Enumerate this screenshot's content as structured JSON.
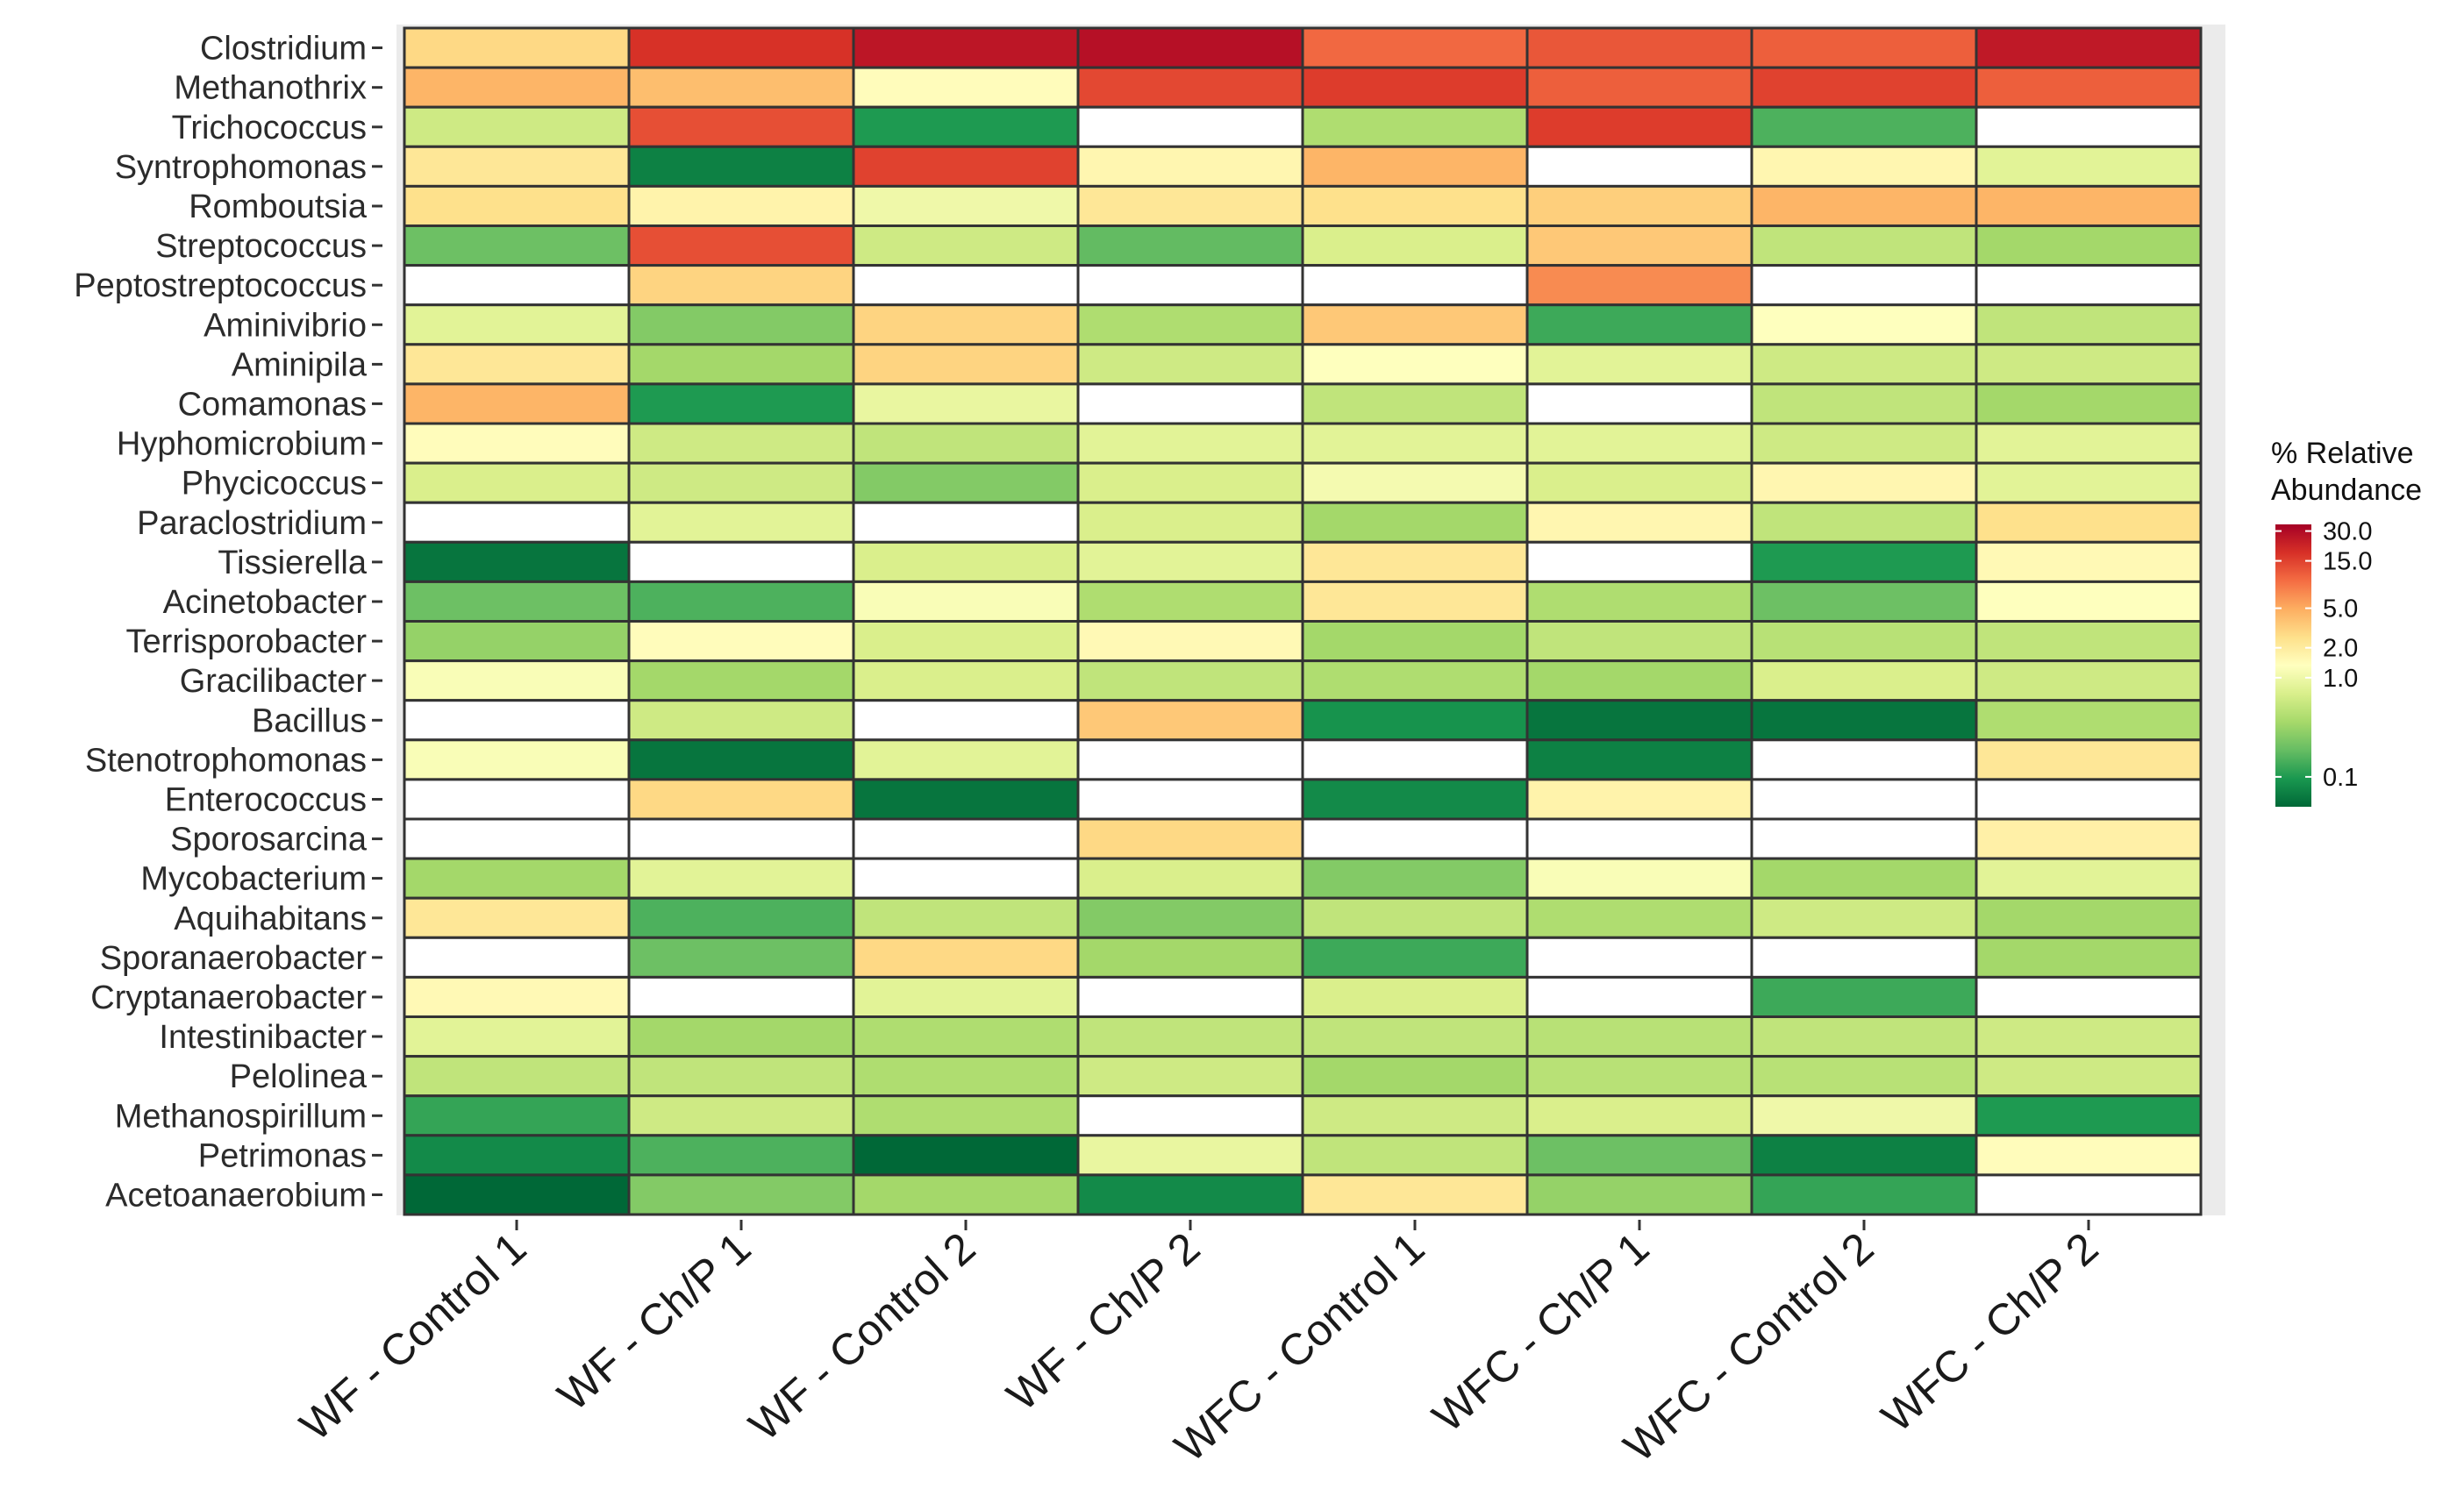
{
  "chart_data": {
    "type": "heatmap",
    "title": "",
    "xlabel": "",
    "ylabel": "",
    "categories": [
      "WF - Control 1",
      "WF - Ch/P 1",
      "WF - Control 2",
      "WF - Ch/P 2",
      "WFC - Control 1",
      "WFC - Ch/P 1",
      "WFC - Control 2",
      "WFC - Ch/P 2"
    ],
    "rows": [
      "Clostridium",
      "Methanothrix",
      "Trichococcus",
      "Syntrophomonas",
      "Romboutsia",
      "Streptococcus",
      "Peptostreptococcus",
      "Aminivibrio",
      "Aminipila",
      "Comamonas",
      "Hyphomicrobium",
      "Phycicoccus",
      "Paraclostridium",
      "Tissierella",
      "Acinetobacter",
      "Terrisporobacter",
      "Gracilibacter",
      "Bacillus",
      "Stenotrophomonas",
      "Enterococcus",
      "Sporosarcina",
      "Mycobacterium",
      "Aquihabitans",
      "Sporanaerobacter",
      "Cryptanaerobacter",
      "Intestinibacter",
      "Pelolinea",
      "Methanospirillum",
      "Petrimonas",
      "Acetoanaerobium"
    ],
    "values": [
      [
        2.8,
        18,
        26,
        28,
        10,
        12,
        11,
        25
      ],
      [
        4.5,
        4,
        1.4,
        14,
        16,
        11,
        15,
        11
      ],
      [
        0.6,
        13,
        0.1,
        null,
        0.4,
        16,
        0.15,
        null
      ],
      [
        2.2,
        0.07,
        15,
        1.6,
        4.5,
        null,
        1.6,
        0.8
      ],
      [
        2.5,
        1.7,
        1.0,
        2.2,
        2.5,
        3.2,
        4.5,
        4.5
      ],
      [
        0.2,
        13,
        0.6,
        0.18,
        0.7,
        3.5,
        0.5,
        0.35
      ],
      [
        null,
        3,
        null,
        null,
        null,
        7,
        null,
        null
      ],
      [
        0.8,
        0.25,
        3,
        0.4,
        3.5,
        0.13,
        1.3,
        0.5
      ],
      [
        2.2,
        0.35,
        3,
        0.6,
        1.3,
        0.8,
        0.6,
        0.6
      ],
      [
        4.5,
        0.1,
        0.9,
        null,
        0.5,
        null,
        0.5,
        0.35
      ],
      [
        1.4,
        0.6,
        0.5,
        0.8,
        0.8,
        0.8,
        0.6,
        0.8
      ],
      [
        0.7,
        0.6,
        0.25,
        0.7,
        1.1,
        0.7,
        1.6,
        0.8
      ],
      [
        null,
        0.8,
        null,
        0.7,
        0.35,
        1.6,
        0.5,
        2.5
      ],
      [
        0.06,
        null,
        0.7,
        0.8,
        2.2,
        null,
        0.1,
        1.5
      ],
      [
        0.2,
        0.15,
        1.2,
        0.4,
        2.2,
        0.4,
        0.2,
        1.3
      ],
      [
        0.3,
        1.4,
        0.7,
        1.5,
        0.35,
        0.5,
        0.45,
        0.5
      ],
      [
        1.2,
        0.35,
        0.7,
        0.5,
        0.4,
        0.35,
        0.7,
        0.6
      ],
      [
        null,
        0.6,
        null,
        3.5,
        0.09,
        0.06,
        0.06,
        0.4
      ],
      [
        1.2,
        0.06,
        0.8,
        null,
        null,
        0.07,
        null,
        2.2
      ],
      [
        null,
        2.8,
        0.06,
        null,
        0.08,
        1.7,
        null,
        null
      ],
      [
        null,
        null,
        null,
        2.8,
        null,
        null,
        null,
        1.8
      ],
      [
        0.35,
        0.8,
        null,
        0.7,
        0.25,
        1.2,
        0.35,
        0.8
      ],
      [
        2.2,
        0.15,
        0.5,
        0.25,
        0.5,
        0.4,
        0.6,
        0.35
      ],
      [
        null,
        0.2,
        2.8,
        0.35,
        0.13,
        null,
        null,
        0.35
      ],
      [
        1.5,
        null,
        0.8,
        null,
        0.7,
        null,
        0.13,
        null
      ],
      [
        0.8,
        0.35,
        0.4,
        0.5,
        0.5,
        0.45,
        0.5,
        0.6
      ],
      [
        0.5,
        0.5,
        0.4,
        0.6,
        0.35,
        0.45,
        0.45,
        0.6
      ],
      [
        0.12,
        0.6,
        0.4,
        null,
        0.6,
        0.7,
        1.0,
        0.1
      ],
      [
        0.08,
        0.15,
        0.05,
        0.9,
        0.5,
        0.2,
        0.07,
        1.4
      ],
      [
        0.05,
        0.25,
        0.35,
        0.08,
        2.2,
        0.3,
        0.12,
        null
      ]
    ],
    "legend": {
      "title_line1": "% Relative",
      "title_line2": "Abundance",
      "ticks": [
        "30.0",
        "15.0",
        "5.0",
        "2.0",
        "1.0",
        "0.1"
      ],
      "tick_values": [
        30,
        15,
        5,
        2,
        1,
        0.1
      ],
      "range": [
        0.05,
        35
      ],
      "position": "right",
      "colors": [
        "#006837",
        "#1a9850",
        "#66bd63",
        "#a6d96a",
        "#d9ef8b",
        "#ffffbf",
        "#fee08b",
        "#fdae61",
        "#f46d43",
        "#d73027",
        "#a50026"
      ]
    },
    "missing_color": "#ffffff",
    "panel_background": "#ebebeb",
    "cell_border": "#333333"
  }
}
